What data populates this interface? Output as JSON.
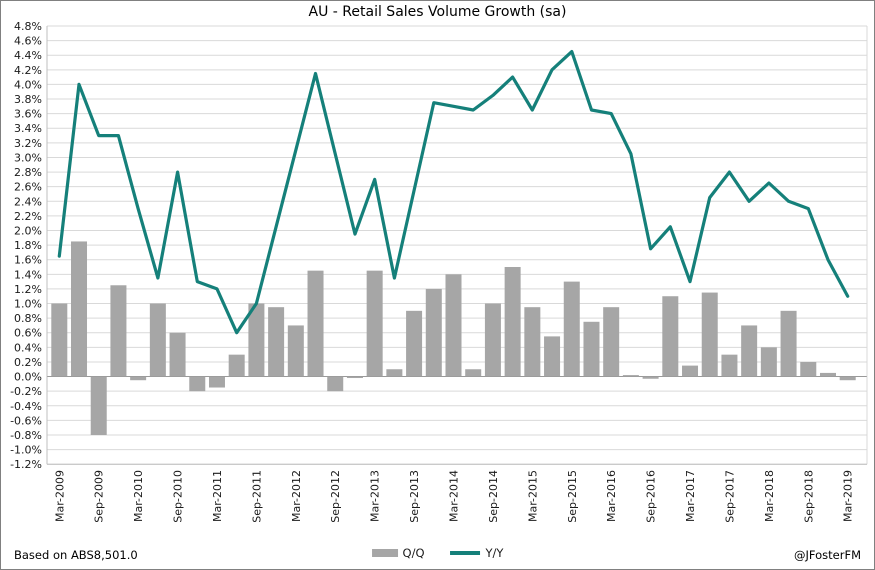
{
  "title": "AU - Retail Sales Volume Growth (sa)",
  "legend": {
    "bar_label": "Q/Q",
    "line_label": "Y/Y"
  },
  "footer": {
    "left": "Based on ABS8,501.0",
    "right": "@JFosterFM"
  },
  "colors": {
    "bar": "#A6A6A6",
    "line": "#15807A",
    "grid": "#D9D9D9",
    "zero_axis": "#999999",
    "plot_border": "#BFBFBF",
    "text": "#1A1A1A"
  },
  "chart_data": {
    "type": "bar+line combo",
    "title": "AU - Retail Sales Volume Growth (sa)",
    "categories": [
      "Mar-2009",
      "Jun-2009",
      "Sep-2009",
      "Dec-2009",
      "Mar-2010",
      "Jun-2010",
      "Sep-2010",
      "Dec-2010",
      "Mar-2011",
      "Jun-2011",
      "Sep-2011",
      "Dec-2011",
      "Mar-2012",
      "Jun-2012",
      "Sep-2012",
      "Dec-2012",
      "Mar-2013",
      "Jun-2013",
      "Sep-2013",
      "Dec-2013",
      "Mar-2014",
      "Jun-2014",
      "Sep-2014",
      "Dec-2014",
      "Mar-2015",
      "Jun-2015",
      "Sep-2015",
      "Dec-2015",
      "Mar-2016",
      "Jun-2016",
      "Sep-2016",
      "Dec-2016",
      "Mar-2017",
      "Jun-2017",
      "Sep-2017",
      "Dec-2017",
      "Mar-2018",
      "Jun-2018",
      "Sep-2018",
      "Dec-2018",
      "Mar-2019"
    ],
    "series": [
      {
        "name": "Q/Q",
        "type": "bar",
        "values": [
          1.0,
          1.85,
          -0.8,
          1.25,
          -0.05,
          1.0,
          0.6,
          -0.2,
          -0.15,
          0.3,
          1.0,
          0.95,
          0.7,
          1.45,
          -0.2,
          -0.02,
          1.45,
          0.1,
          0.9,
          1.2,
          1.4,
          0.1,
          1.0,
          1.5,
          0.95,
          0.55,
          1.3,
          0.75,
          0.95,
          0.02,
          -0.03,
          1.1,
          0.15,
          1.15,
          0.3,
          0.7,
          0.4,
          0.9,
          0.2,
          0.05,
          -0.05
        ]
      },
      {
        "name": "Y/Y",
        "type": "line",
        "values": [
          1.65,
          4.0,
          3.3,
          3.3,
          2.3,
          1.35,
          2.8,
          1.3,
          1.2,
          0.6,
          1.0,
          2.05,
          3.1,
          4.15,
          3.05,
          1.95,
          2.7,
          1.35,
          2.55,
          3.75,
          3.7,
          3.65,
          3.85,
          4.1,
          3.65,
          4.2,
          4.45,
          3.65,
          3.6,
          3.05,
          1.75,
          2.05,
          1.3,
          2.45,
          2.8,
          2.4,
          2.65,
          2.4,
          2.3,
          1.6,
          1.1
        ]
      }
    ],
    "ylim": [
      -1.2,
      4.8
    ],
    "ytick_step": 0.2,
    "ytick_labels": [
      "4.8%",
      "4.6%",
      "4.4%",
      "4.2%",
      "4.0%",
      "3.8%",
      "3.6%",
      "3.4%",
      "3.2%",
      "3.0%",
      "2.8%",
      "2.6%",
      "2.4%",
      "2.2%",
      "2.0%",
      "1.8%",
      "1.6%",
      "1.4%",
      "1.2%",
      "1.0%",
      "0.8%",
      "0.6%",
      "0.4%",
      "0.2%",
      "0.0%",
      "-0.2%",
      "-0.4%",
      "-0.6%",
      "-0.8%",
      "-1.0%",
      "-1.2%"
    ],
    "xtick_labels": [
      "Mar-2009",
      "Sep-2009",
      "Mar-2010",
      "Sep-2010",
      "Mar-2011",
      "Sep-2011",
      "Mar-2012",
      "Sep-2012",
      "Mar-2013",
      "Sep-2013",
      "Mar-2014",
      "Sep-2014",
      "Mar-2015",
      "Sep-2015",
      "Mar-2016",
      "Sep-2016",
      "Mar-2017",
      "Sep-2017",
      "Mar-2018",
      "Sep-2018",
      "Mar-2019"
    ],
    "xtick_every": 2,
    "grid": true,
    "legend_position": "bottom"
  }
}
